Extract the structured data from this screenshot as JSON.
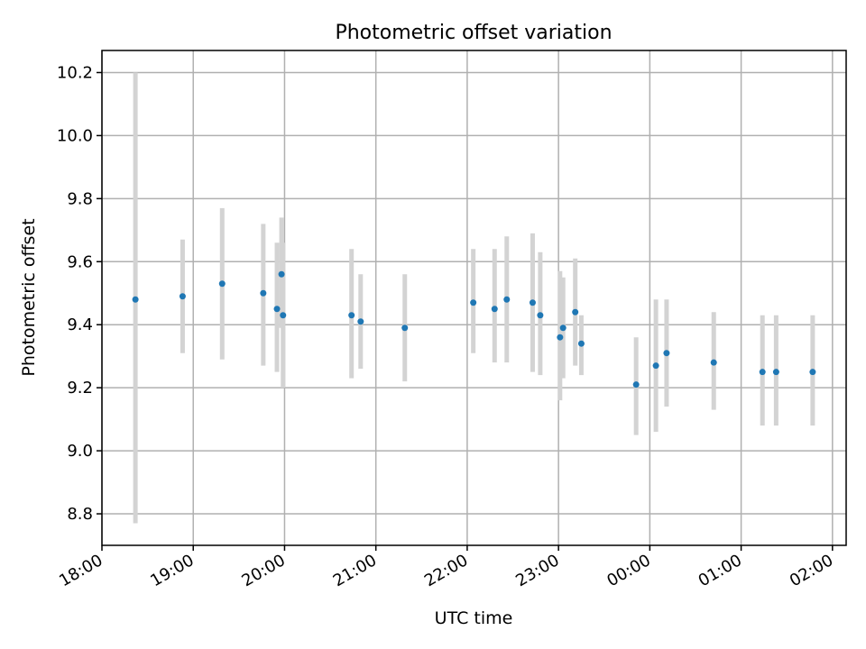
{
  "chart_data": {
    "type": "scatter",
    "title": "Photometric offset variation",
    "xlabel": "UTC time",
    "ylabel": "Photometric offset",
    "x_ticks": [
      "18:00",
      "19:00",
      "20:00",
      "21:00",
      "22:00",
      "23:00",
      "00:00",
      "01:00",
      "02:00"
    ],
    "y_ticks": [
      "8.8",
      "9.0",
      "9.2",
      "9.4",
      "9.6",
      "9.8",
      "10.0",
      "10.2"
    ],
    "xlim": [
      "18:00",
      "02:09"
    ],
    "ylim": [
      8.7,
      10.27
    ],
    "grid": true,
    "point_color": "#1f77b4",
    "errorbar_color": "#d3d3d3",
    "points": [
      {
        "x": "18:22",
        "y": 9.48,
        "lo": 8.77,
        "hi": 10.2
      },
      {
        "x": "18:53",
        "y": 9.49,
        "lo": 9.31,
        "hi": 9.67
      },
      {
        "x": "19:19",
        "y": 9.53,
        "lo": 9.29,
        "hi": 9.77
      },
      {
        "x": "19:46",
        "y": 9.5,
        "lo": 9.27,
        "hi": 9.72
      },
      {
        "x": "19:55",
        "y": 9.45,
        "lo": 9.25,
        "hi": 9.66
      },
      {
        "x": "19:58",
        "y": 9.56,
        "lo": 9.39,
        "hi": 9.74
      },
      {
        "x": "19:59",
        "y": 9.43,
        "lo": 9.2,
        "hi": 9.66
      },
      {
        "x": "20:44",
        "y": 9.43,
        "lo": 9.23,
        "hi": 9.64
      },
      {
        "x": "20:50",
        "y": 9.41,
        "lo": 9.26,
        "hi": 9.56
      },
      {
        "x": "21:19",
        "y": 9.39,
        "lo": 9.22,
        "hi": 9.56
      },
      {
        "x": "22:04",
        "y": 9.47,
        "lo": 9.31,
        "hi": 9.64
      },
      {
        "x": "22:18",
        "y": 9.45,
        "lo": 9.28,
        "hi": 9.64
      },
      {
        "x": "22:26",
        "y": 9.48,
        "lo": 9.28,
        "hi": 9.68
      },
      {
        "x": "22:43",
        "y": 9.47,
        "lo": 9.25,
        "hi": 9.69
      },
      {
        "x": "22:48",
        "y": 9.43,
        "lo": 9.24,
        "hi": 9.63
      },
      {
        "x": "23:01",
        "y": 9.36,
        "lo": 9.16,
        "hi": 9.57
      },
      {
        "x": "23:03",
        "y": 9.39,
        "lo": 9.23,
        "hi": 9.55
      },
      {
        "x": "23:11",
        "y": 9.44,
        "lo": 9.27,
        "hi": 9.61
      },
      {
        "x": "23:15",
        "y": 9.34,
        "lo": 9.24,
        "hi": 9.43
      },
      {
        "x": "23:51",
        "y": 9.21,
        "lo": 9.05,
        "hi": 9.36
      },
      {
        "x": "00:04",
        "y": 9.27,
        "lo": 9.06,
        "hi": 9.48
      },
      {
        "x": "00:11",
        "y": 9.31,
        "lo": 9.14,
        "hi": 9.48
      },
      {
        "x": "00:42",
        "y": 9.28,
        "lo": 9.13,
        "hi": 9.44
      },
      {
        "x": "01:14",
        "y": 9.25,
        "lo": 9.08,
        "hi": 9.43
      },
      {
        "x": "01:23",
        "y": 9.25,
        "lo": 9.08,
        "hi": 9.43
      },
      {
        "x": "01:47",
        "y": 9.25,
        "lo": 9.08,
        "hi": 9.43
      }
    ]
  }
}
